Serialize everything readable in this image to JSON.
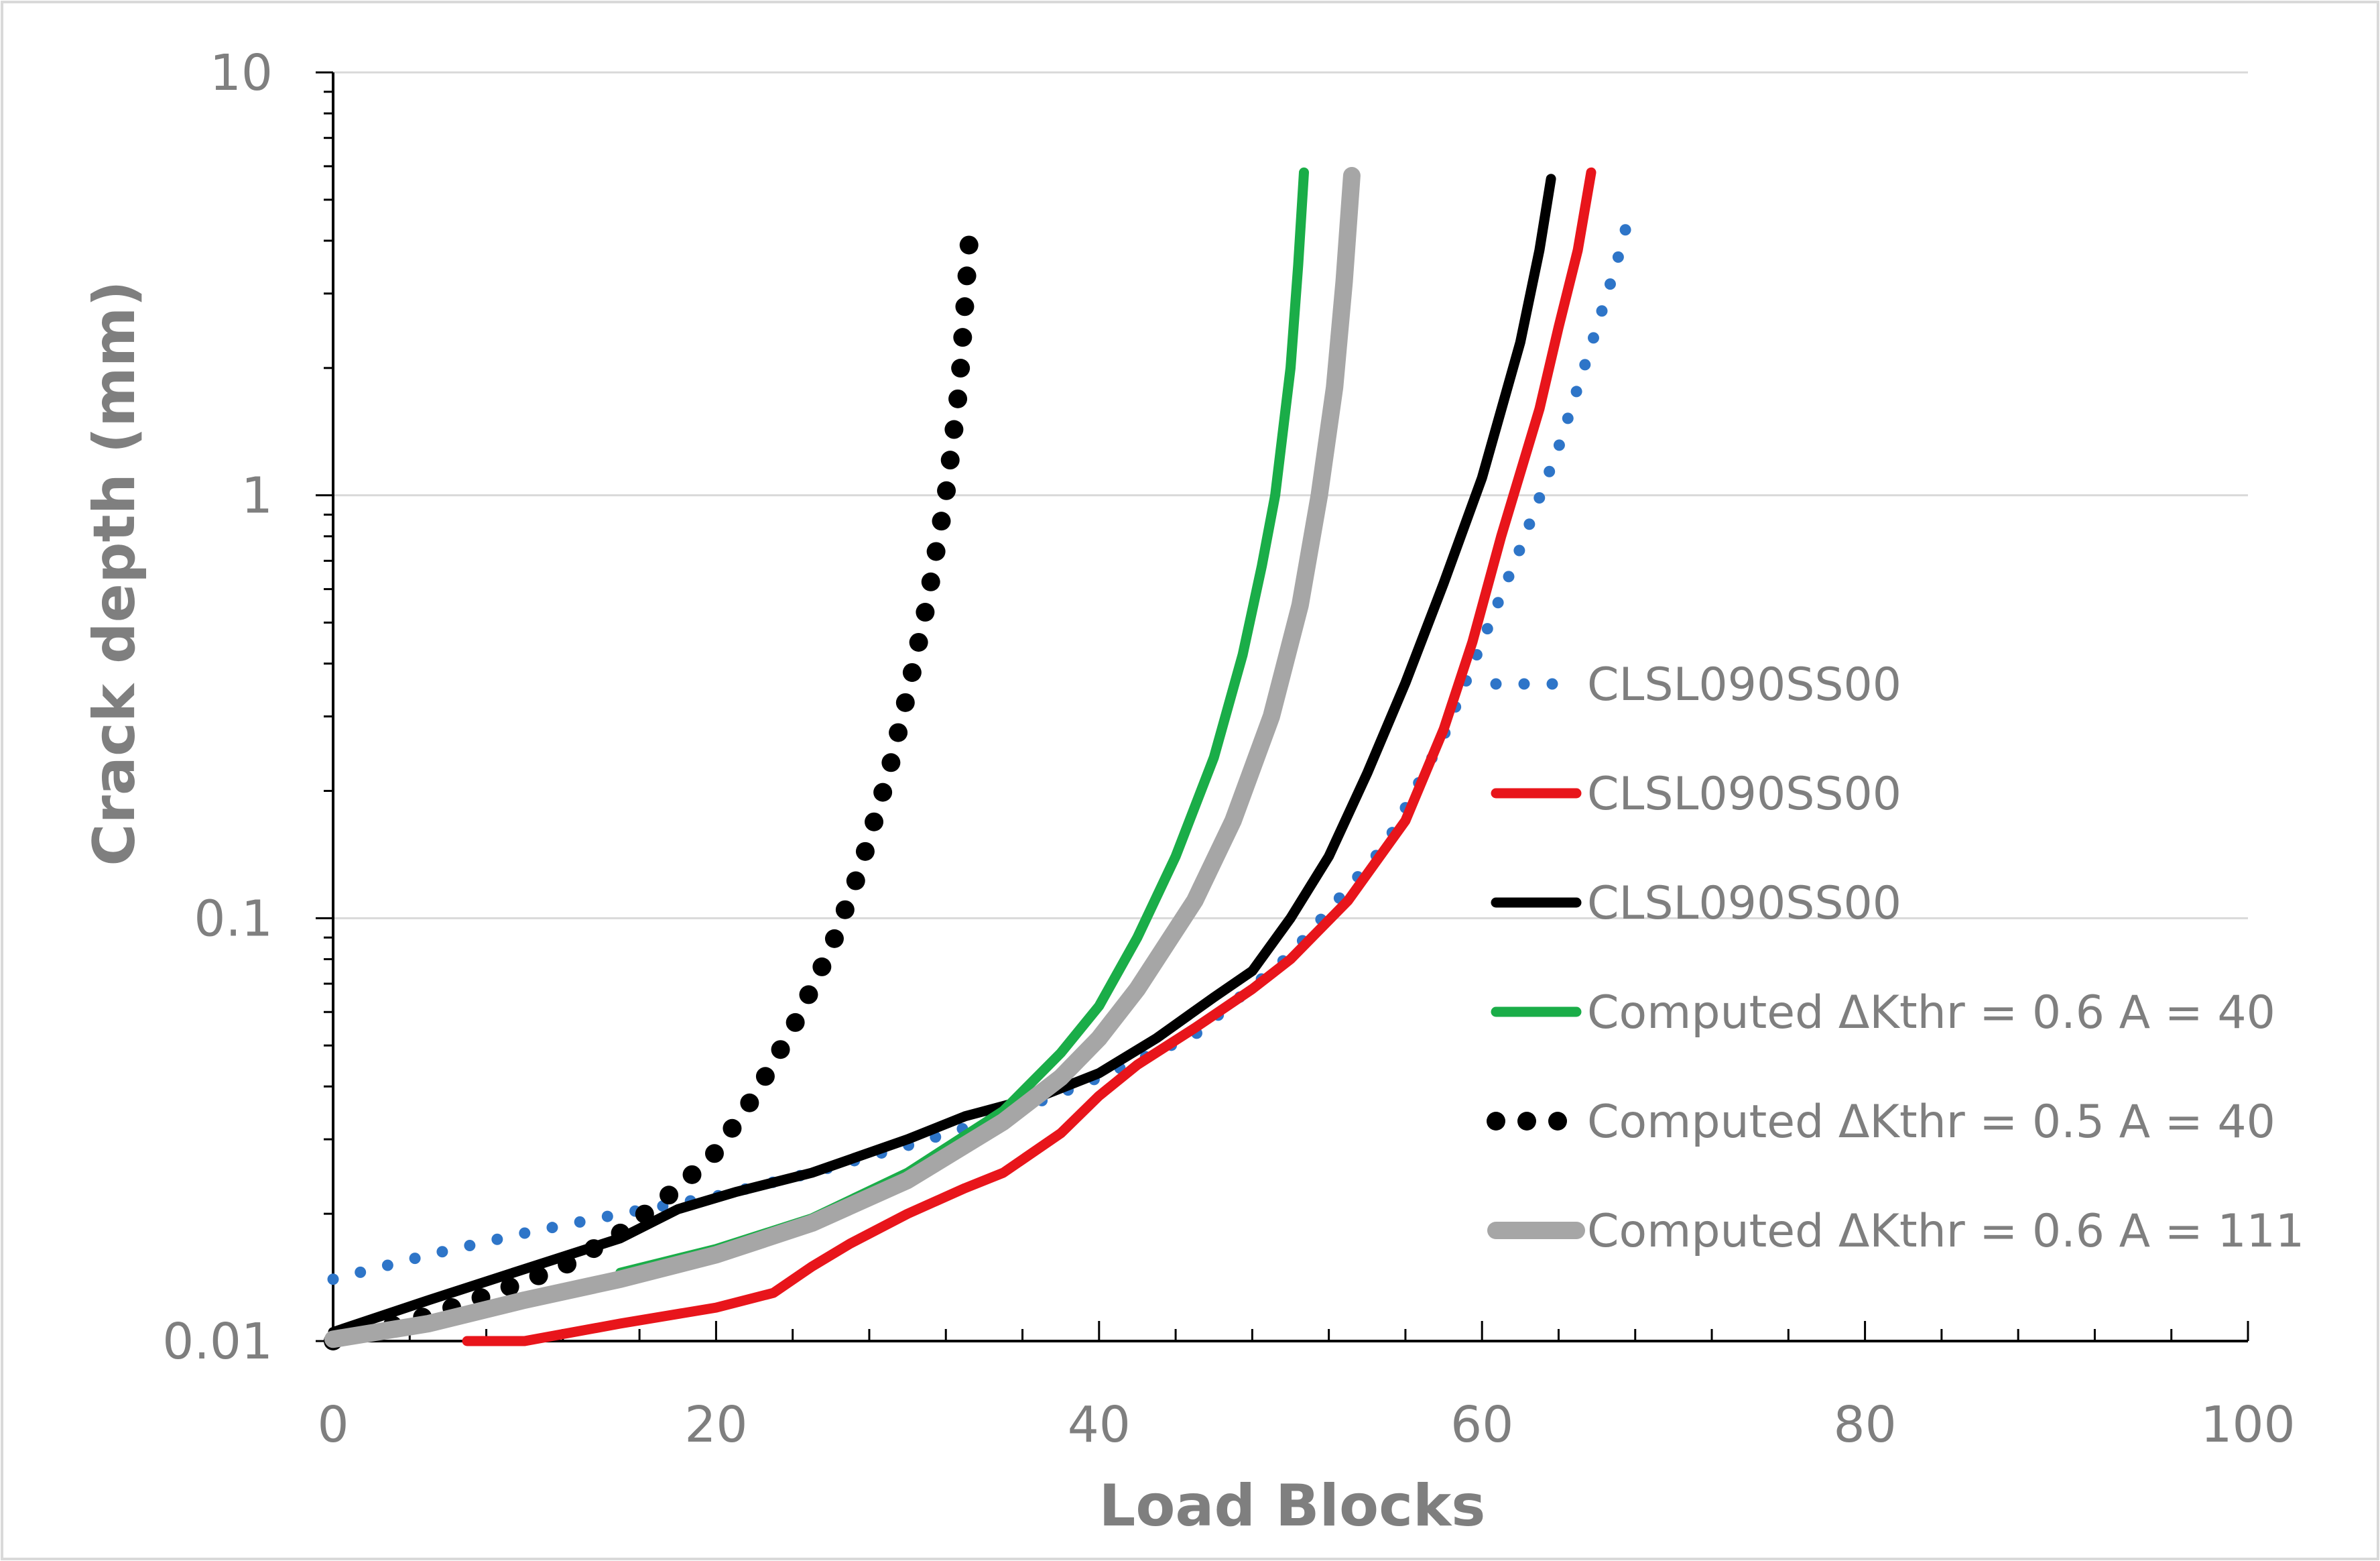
{
  "chart_data": {
    "type": "line",
    "title": "",
    "xlabel": "Load Blocks",
    "ylabel": "Crack depth (mm)",
    "xlim": [
      0,
      100
    ],
    "ylim": [
      0.01,
      10
    ],
    "yscale": "log",
    "x_ticks": [
      0,
      20,
      40,
      60,
      80,
      100
    ],
    "x_tick_labels": [
      "0",
      "20",
      "40",
      "60",
      "80",
      "100"
    ],
    "y_ticks": [
      0.01,
      0.1,
      1,
      10
    ],
    "y_tick_labels": [
      "0.01",
      "0.1",
      "1",
      "10"
    ],
    "gridlines": "horizontal major",
    "legend_position": "right",
    "series": [
      {
        "name": "CLSL090SS00",
        "color": "#2e75c8",
        "style": "dotted",
        "x": [
          0,
          5,
          10,
          15,
          20,
          25,
          30,
          35,
          40,
          45,
          50,
          55,
          58,
          60,
          62,
          64,
          65,
          66,
          67,
          67.8
        ],
        "y": [
          0.014,
          0.016,
          0.018,
          0.02,
          0.022,
          0.025,
          0.029,
          0.034,
          0.042,
          0.053,
          0.082,
          0.15,
          0.27,
          0.45,
          0.75,
          1.3,
          1.8,
          2.5,
          3.5,
          4.8
        ]
      },
      {
        "name": "CLSL090SS00",
        "color": "#e8151b",
        "style": "solid",
        "x": [
          7,
          10,
          15,
          20,
          23,
          25,
          27,
          30,
          33,
          35,
          38,
          40,
          42,
          45,
          48,
          50,
          53,
          56,
          58,
          59.5,
          61,
          63,
          64,
          65,
          65.7
        ],
        "y": [
          0.01,
          0.01,
          0.011,
          0.012,
          0.013,
          0.015,
          0.017,
          0.02,
          0.023,
          0.025,
          0.031,
          0.038,
          0.045,
          0.055,
          0.068,
          0.08,
          0.11,
          0.17,
          0.28,
          0.45,
          0.8,
          1.6,
          2.5,
          3.8,
          5.8
        ]
      },
      {
        "name": "CLSL090SS00",
        "color": "#000000",
        "style": "solid",
        "x": [
          0,
          5,
          10,
          15,
          18,
          21,
          25,
          30,
          33,
          37,
          40,
          43,
          46,
          48,
          50,
          52,
          54,
          56,
          58,
          60,
          62,
          63,
          63.6
        ],
        "y": [
          0.0105,
          0.0125,
          0.0148,
          0.0175,
          0.0205,
          0.0225,
          0.025,
          0.03,
          0.034,
          0.038,
          0.043,
          0.052,
          0.065,
          0.075,
          0.1,
          0.14,
          0.22,
          0.36,
          0.62,
          1.1,
          2.3,
          3.8,
          5.6
        ]
      },
      {
        "name": "Computed ΔKthr = 0.6 A = 40",
        "color": "#1aad48",
        "style": "solid",
        "x": [
          15,
          20,
          25,
          30,
          35,
          38,
          40,
          42,
          44,
          46,
          47.5,
          48.5,
          49.2,
          50,
          50.4,
          50.7
        ],
        "y": [
          0.0145,
          0.0165,
          0.0195,
          0.025,
          0.035,
          0.048,
          0.062,
          0.09,
          0.14,
          0.24,
          0.42,
          0.68,
          1.0,
          2.0,
          3.5,
          5.8
        ]
      },
      {
        "name": "Computed ΔKthr = 0.5 A = 40",
        "color": "#000000",
        "style": "dotted",
        "x": [
          0,
          5,
          8,
          12,
          15,
          18,
          20,
          22,
          24,
          26,
          27.5,
          29,
          30,
          31,
          32,
          32.7,
          33.3
        ],
        "y": [
          0.01,
          0.0115,
          0.0128,
          0.015,
          0.018,
          0.023,
          0.028,
          0.038,
          0.055,
          0.085,
          0.13,
          0.22,
          0.34,
          0.55,
          1.0,
          1.8,
          4.5
        ]
      },
      {
        "name": "Computed ΔKthr = 0.6 A = 111",
        "color": "#a6a6a6",
        "style": "solid",
        "x": [
          0,
          5,
          10,
          15,
          20,
          25,
          30,
          35,
          38,
          40,
          42,
          45,
          47,
          49,
          50.5,
          51.5,
          52.3,
          52.8,
          53.2
        ],
        "y": [
          0.0101,
          0.011,
          0.0125,
          0.014,
          0.016,
          0.019,
          0.024,
          0.033,
          0.042,
          0.052,
          0.068,
          0.11,
          0.17,
          0.3,
          0.55,
          1.0,
          1.8,
          3.2,
          5.7
        ]
      }
    ]
  }
}
